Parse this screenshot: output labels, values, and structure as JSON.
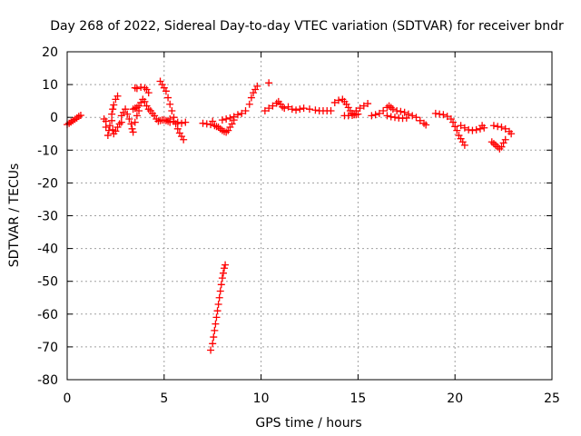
{
  "chart_data": {
    "type": "scatter",
    "title": "Day 268 of 2022, Sidereal Day-to-day VTEC variation (SDTVAR) for receiver bndr",
    "xlabel": "GPS time / hours",
    "ylabel": "SDTVAR / TECUs",
    "xlim": [
      0,
      25
    ],
    "ylim": [
      -80,
      20
    ],
    "xticks": [
      0,
      5,
      10,
      15,
      20,
      25
    ],
    "yticks": [
      -80,
      -70,
      -60,
      -50,
      -40,
      -30,
      -20,
      -10,
      0,
      10,
      20
    ],
    "grid": true,
    "marker": "plus",
    "color": "#ff0000",
    "series": [
      {
        "name": "SDTVAR",
        "points": [
          [
            0.0,
            -2.2
          ],
          [
            0.1,
            -1.8
          ],
          [
            0.2,
            -1.4
          ],
          [
            0.3,
            -1.0
          ],
          [
            0.4,
            -0.6
          ],
          [
            0.5,
            -0.2
          ],
          [
            0.6,
            0.3
          ],
          [
            0.7,
            0.6
          ],
          [
            1.9,
            -0.5
          ],
          [
            2.0,
            -1.2
          ],
          [
            2.0,
            -3.0
          ],
          [
            2.1,
            -5.5
          ],
          [
            2.15,
            -4.0
          ],
          [
            2.2,
            -2.5
          ],
          [
            2.3,
            -1.0
          ],
          [
            2.35,
            -3.8
          ],
          [
            2.4,
            -5.0
          ],
          [
            2.5,
            -4.2
          ],
          [
            2.6,
            -3.0
          ],
          [
            2.7,
            -2.0
          ],
          [
            2.8,
            -1.5
          ],
          [
            2.3,
            1.0
          ],
          [
            2.35,
            2.5
          ],
          [
            2.4,
            3.8
          ],
          [
            2.5,
            5.5
          ],
          [
            2.6,
            6.5
          ],
          [
            2.8,
            0.5
          ],
          [
            2.9,
            1.5
          ],
          [
            3.0,
            2.5
          ],
          [
            3.1,
            1.0
          ],
          [
            3.2,
            -0.5
          ],
          [
            3.3,
            -2.0
          ],
          [
            3.35,
            -3.5
          ],
          [
            3.4,
            -4.5
          ],
          [
            3.5,
            -1.5
          ],
          [
            3.6,
            0.5
          ],
          [
            3.7,
            2.0
          ],
          [
            3.4,
            2.5
          ],
          [
            3.5,
            2.8
          ],
          [
            3.6,
            3.0
          ],
          [
            3.7,
            3.5
          ],
          [
            3.8,
            4.5
          ],
          [
            3.9,
            5.5
          ],
          [
            4.0,
            4.8
          ],
          [
            4.1,
            3.5
          ],
          [
            4.2,
            2.5
          ],
          [
            4.3,
            2.0
          ],
          [
            4.4,
            1.2
          ],
          [
            4.5,
            0.5
          ],
          [
            4.6,
            -0.5
          ],
          [
            4.7,
            -1.2
          ],
          [
            4.8,
            -1.0
          ],
          [
            4.9,
            -0.8
          ],
          [
            5.0,
            -0.8
          ],
          [
            5.1,
            -1.0
          ],
          [
            5.2,
            -1.2
          ],
          [
            5.3,
            -1.5
          ],
          [
            3.5,
            9.0
          ],
          [
            3.6,
            8.8
          ],
          [
            3.8,
            9.2
          ],
          [
            4.0,
            9.0
          ],
          [
            4.1,
            8.5
          ],
          [
            4.2,
            7.5
          ],
          [
            4.8,
            11.0
          ],
          [
            4.9,
            10.0
          ],
          [
            5.0,
            9.0
          ],
          [
            5.1,
            8.0
          ],
          [
            5.2,
            6.0
          ],
          [
            5.3,
            4.0
          ],
          [
            5.4,
            2.0
          ],
          [
            5.5,
            0.0
          ],
          [
            5.6,
            -2.0
          ],
          [
            5.7,
            -3.5
          ],
          [
            5.8,
            -4.8
          ],
          [
            5.9,
            -5.8
          ],
          [
            6.0,
            -6.8
          ],
          [
            5.3,
            -0.5
          ],
          [
            5.5,
            -1.2
          ],
          [
            5.7,
            -1.5
          ],
          [
            5.9,
            -1.8
          ],
          [
            6.1,
            -1.5
          ],
          [
            7.0,
            -1.8
          ],
          [
            7.2,
            -2.0
          ],
          [
            7.4,
            -2.2
          ],
          [
            7.5,
            -1.2
          ],
          [
            7.6,
            -2.5
          ],
          [
            7.7,
            -2.8
          ],
          [
            7.8,
            -3.0
          ],
          [
            7.9,
            -3.5
          ],
          [
            8.0,
            -4.0
          ],
          [
            8.1,
            -4.3
          ],
          [
            8.2,
            -4.5
          ],
          [
            8.3,
            -4.0
          ],
          [
            8.4,
            -3.0
          ],
          [
            8.5,
            -2.0
          ],
          [
            8.6,
            -0.8
          ],
          [
            8.0,
            -0.8
          ],
          [
            8.2,
            -0.5
          ],
          [
            8.4,
            -0.2
          ],
          [
            8.6,
            0.2
          ],
          [
            8.8,
            0.8
          ],
          [
            9.0,
            1.2
          ],
          [
            9.2,
            2.0
          ],
          [
            9.4,
            4.0
          ],
          [
            9.5,
            6.0
          ],
          [
            9.6,
            7.5
          ],
          [
            9.7,
            8.5
          ],
          [
            9.8,
            9.5
          ],
          [
            7.4,
            -71.0
          ],
          [
            7.5,
            -69.0
          ],
          [
            7.55,
            -67.0
          ],
          [
            7.6,
            -65.0
          ],
          [
            7.65,
            -63.0
          ],
          [
            7.7,
            -61.0
          ],
          [
            7.75,
            -59.0
          ],
          [
            7.8,
            -57.0
          ],
          [
            7.85,
            -55.0
          ],
          [
            7.9,
            -53.0
          ],
          [
            7.95,
            -51.0
          ],
          [
            8.0,
            -49.0
          ],
          [
            8.05,
            -47.5
          ],
          [
            8.1,
            -46.0
          ],
          [
            8.15,
            -45.0
          ],
          [
            10.4,
            10.5
          ],
          [
            10.2,
            2.0
          ],
          [
            10.4,
            2.8
          ],
          [
            10.6,
            3.5
          ],
          [
            10.8,
            4.3
          ],
          [
            10.9,
            4.8
          ],
          [
            11.0,
            4.0
          ],
          [
            11.1,
            3.2
          ],
          [
            11.2,
            2.8
          ],
          [
            11.4,
            3.2
          ],
          [
            11.6,
            2.5
          ],
          [
            11.8,
            2.2
          ],
          [
            12.0,
            2.5
          ],
          [
            12.2,
            2.8
          ],
          [
            12.5,
            2.5
          ],
          [
            12.8,
            2.2
          ],
          [
            13.0,
            2.0
          ],
          [
            13.2,
            2.0
          ],
          [
            13.4,
            2.0
          ],
          [
            13.6,
            2.0
          ],
          [
            13.8,
            4.5
          ],
          [
            14.0,
            5.2
          ],
          [
            14.2,
            5.5
          ],
          [
            14.3,
            4.8
          ],
          [
            14.4,
            4.0
          ],
          [
            14.5,
            3.0
          ],
          [
            14.6,
            2.0
          ],
          [
            14.7,
            1.2
          ],
          [
            14.8,
            0.8
          ],
          [
            14.3,
            0.5
          ],
          [
            14.5,
            0.5
          ],
          [
            14.7,
            0.6
          ],
          [
            14.9,
            0.8
          ],
          [
            15.0,
            1.0
          ],
          [
            14.9,
            2.0
          ],
          [
            15.1,
            2.8
          ],
          [
            15.3,
            3.5
          ],
          [
            15.5,
            4.2
          ],
          [
            15.7,
            0.5
          ],
          [
            15.9,
            0.8
          ],
          [
            16.1,
            1.2
          ],
          [
            16.3,
            2.0
          ],
          [
            16.5,
            3.0
          ],
          [
            16.6,
            3.5
          ],
          [
            16.7,
            3.0
          ],
          [
            16.8,
            2.5
          ],
          [
            17.0,
            2.0
          ],
          [
            17.2,
            1.8
          ],
          [
            17.4,
            1.5
          ],
          [
            17.6,
            1.0
          ],
          [
            17.8,
            0.5
          ],
          [
            18.0,
            0.0
          ],
          [
            18.2,
            -1.0
          ],
          [
            18.4,
            -1.8
          ],
          [
            18.5,
            -2.3
          ],
          [
            16.5,
            0.5
          ],
          [
            16.7,
            0.2
          ],
          [
            16.9,
            0.0
          ],
          [
            17.1,
            -0.2
          ],
          [
            17.3,
            -0.3
          ],
          [
            17.5,
            -0.2
          ],
          [
            19.0,
            1.2
          ],
          [
            19.2,
            1.0
          ],
          [
            19.4,
            0.8
          ],
          [
            19.6,
            0.3
          ],
          [
            19.8,
            -0.5
          ],
          [
            19.9,
            -1.5
          ],
          [
            20.0,
            -2.8
          ],
          [
            20.1,
            -4.0
          ],
          [
            20.2,
            -5.5
          ],
          [
            20.3,
            -6.5
          ],
          [
            20.4,
            -7.5
          ],
          [
            20.5,
            -8.5
          ],
          [
            20.3,
            -2.5
          ],
          [
            20.5,
            -3.2
          ],
          [
            20.7,
            -3.8
          ],
          [
            20.9,
            -4.0
          ],
          [
            21.1,
            -3.8
          ],
          [
            21.3,
            -3.5
          ],
          [
            21.4,
            -2.5
          ],
          [
            21.5,
            -3.2
          ],
          [
            22.0,
            -2.5
          ],
          [
            22.2,
            -2.8
          ],
          [
            22.4,
            -3.0
          ],
          [
            22.6,
            -3.5
          ],
          [
            22.8,
            -4.3
          ],
          [
            22.9,
            -5.0
          ],
          [
            21.9,
            -7.5
          ],
          [
            22.0,
            -8.0
          ],
          [
            22.1,
            -8.5
          ],
          [
            22.2,
            -9.0
          ],
          [
            22.3,
            -9.6
          ],
          [
            22.4,
            -9.0
          ],
          [
            22.5,
            -7.8
          ],
          [
            22.6,
            -6.8
          ]
        ]
      }
    ]
  }
}
